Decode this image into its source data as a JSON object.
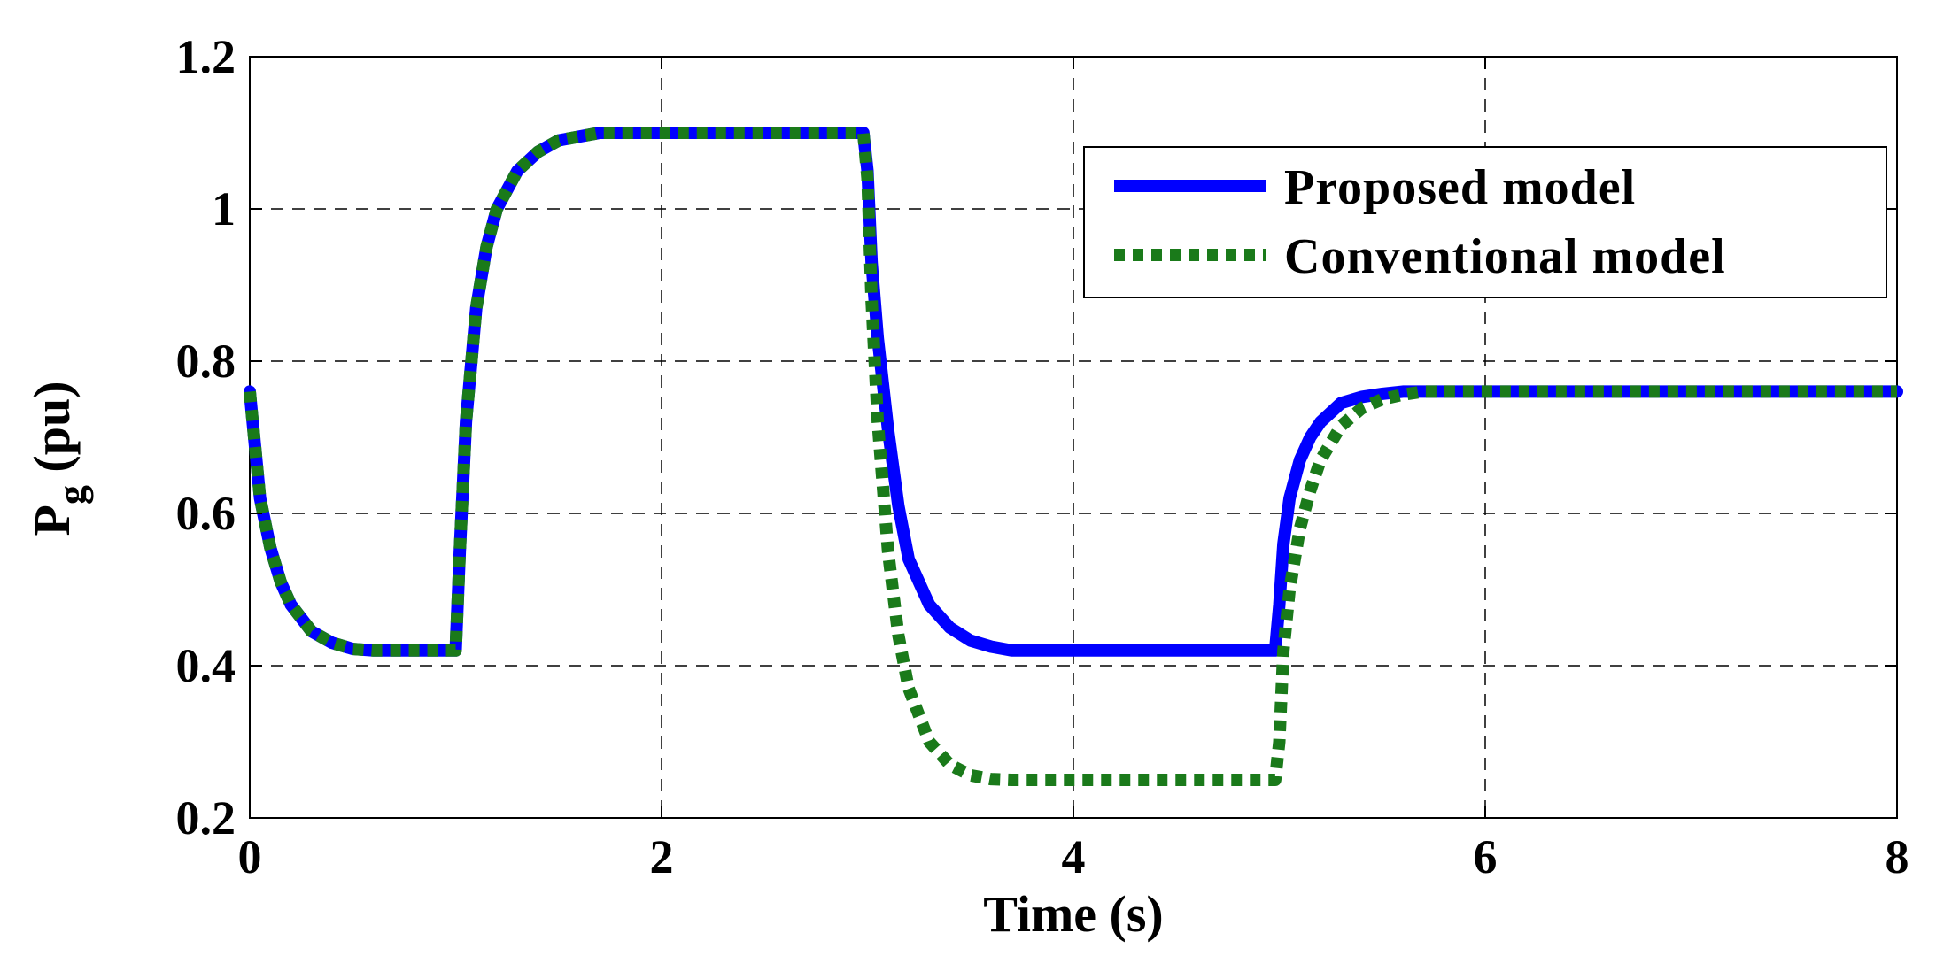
{
  "chart_data": {
    "type": "line",
    "title": "",
    "xlabel": "Time (s)",
    "ylabel_main": "P",
    "ylabel_sub": "g",
    "ylabel_unit": " (pu)",
    "xlim": [
      0,
      8
    ],
    "ylim": [
      0.2,
      1.2
    ],
    "xticks": [
      0,
      2,
      4,
      6,
      8
    ],
    "xtick_labels": [
      "0",
      "2",
      "4",
      "6",
      "8"
    ],
    "yticks": [
      0.2,
      0.4,
      0.6,
      0.8,
      1.0,
      1.2
    ],
    "ytick_labels": [
      "0.2",
      "0.4",
      "0.6",
      "0.8",
      "1",
      "1.2"
    ],
    "grid": true,
    "legend_position": "top-right",
    "series": [
      {
        "name": "Proposed model",
        "color": "#0000ff",
        "style": "solid",
        "x": [
          0,
          0.05,
          0.1,
          0.15,
          0.2,
          0.3,
          0.4,
          0.5,
          0.6,
          0.8,
          1.0,
          1.02,
          1.05,
          1.1,
          1.15,
          1.2,
          1.3,
          1.4,
          1.5,
          1.6,
          1.7,
          2.0,
          2.5,
          2.98,
          3.0,
          3.02,
          3.05,
          3.1,
          3.15,
          3.2,
          3.3,
          3.4,
          3.5,
          3.6,
          3.7,
          4.0,
          4.5,
          4.98,
          5.0,
          5.02,
          5.05,
          5.1,
          5.15,
          5.2,
          5.3,
          5.4,
          5.5,
          5.6,
          5.7,
          6.0,
          7.0,
          8.0
        ],
        "y": [
          0.76,
          0.62,
          0.555,
          0.51,
          0.48,
          0.445,
          0.43,
          0.422,
          0.42,
          0.42,
          0.42,
          0.55,
          0.72,
          0.87,
          0.95,
          1.0,
          1.05,
          1.075,
          1.09,
          1.095,
          1.1,
          1.1,
          1.1,
          1.1,
          1.05,
          0.93,
          0.83,
          0.71,
          0.61,
          0.54,
          0.48,
          0.45,
          0.433,
          0.425,
          0.42,
          0.42,
          0.42,
          0.42,
          0.48,
          0.56,
          0.62,
          0.67,
          0.7,
          0.72,
          0.745,
          0.753,
          0.757,
          0.76,
          0.76,
          0.76,
          0.76,
          0.76
        ]
      },
      {
        "name": "Conventional model",
        "color": "#1a7a1a",
        "style": "dotted",
        "x": [
          0,
          0.05,
          0.1,
          0.15,
          0.2,
          0.3,
          0.4,
          0.5,
          0.6,
          0.8,
          1.0,
          1.02,
          1.05,
          1.1,
          1.15,
          1.2,
          1.3,
          1.4,
          1.5,
          1.6,
          1.7,
          2.0,
          2.5,
          2.98,
          3.0,
          3.02,
          3.05,
          3.1,
          3.15,
          3.2,
          3.3,
          3.4,
          3.5,
          3.6,
          3.7,
          4.0,
          4.5,
          4.98,
          5.0,
          5.02,
          5.05,
          5.1,
          5.15,
          5.2,
          5.3,
          5.4,
          5.5,
          5.6,
          5.7,
          6.0,
          7.0,
          8.0
        ],
        "y": [
          0.76,
          0.62,
          0.555,
          0.51,
          0.48,
          0.445,
          0.43,
          0.422,
          0.42,
          0.42,
          0.42,
          0.55,
          0.72,
          0.87,
          0.95,
          1.0,
          1.05,
          1.075,
          1.09,
          1.095,
          1.1,
          1.1,
          1.1,
          1.1,
          1.04,
          0.88,
          0.72,
          0.55,
          0.44,
          0.37,
          0.3,
          0.27,
          0.256,
          0.251,
          0.25,
          0.25,
          0.25,
          0.25,
          0.3,
          0.42,
          0.5,
          0.58,
          0.63,
          0.67,
          0.715,
          0.738,
          0.75,
          0.756,
          0.76,
          0.76,
          0.76,
          0.76
        ]
      }
    ]
  }
}
